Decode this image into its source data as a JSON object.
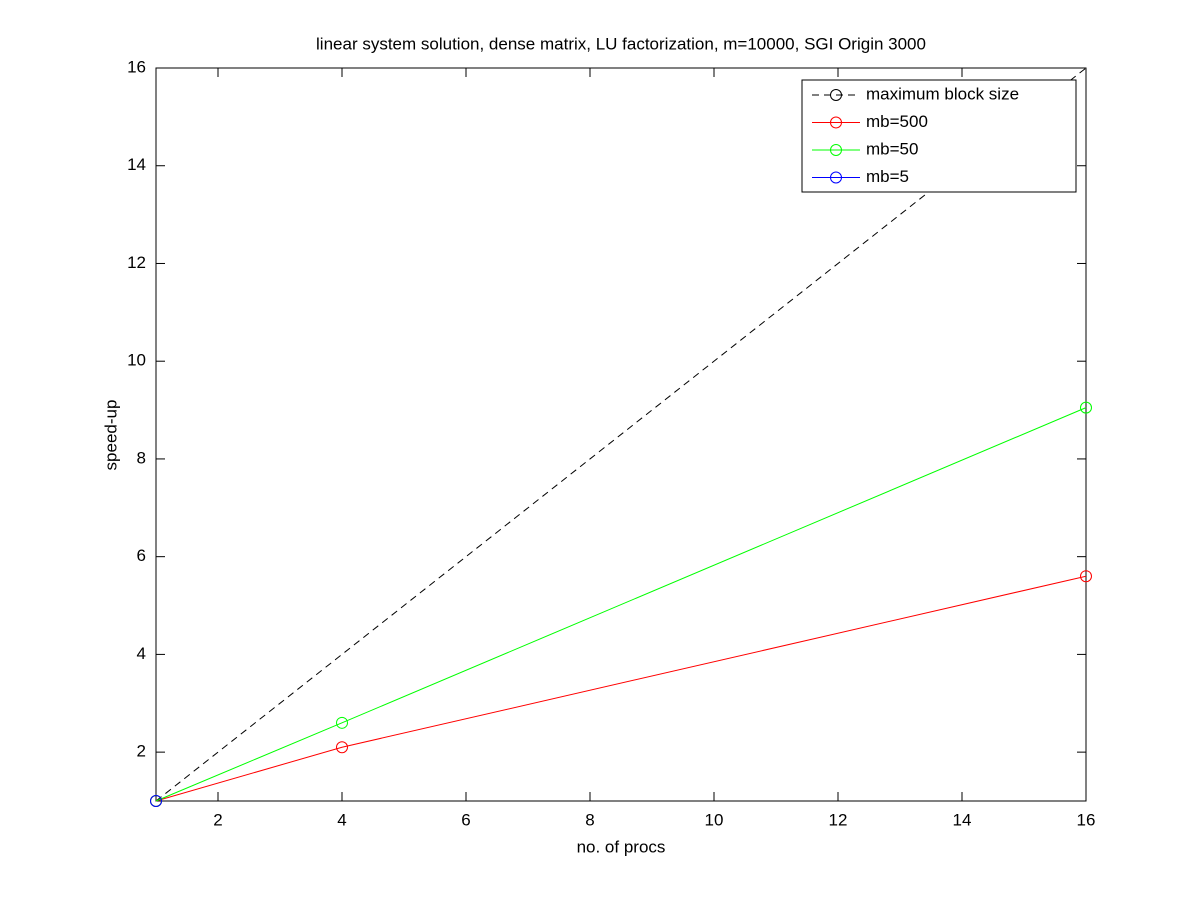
{
  "chart_data": {
    "type": "line",
    "title": "linear system solution, dense matrix, LU factorization, m=10000, SGI Origin 3000",
    "x_label": "no. of procs",
    "y_label": "speed-up",
    "xlim": [
      1,
      16
    ],
    "ylim": [
      1,
      16
    ],
    "xticks": [
      2,
      4,
      6,
      8,
      10,
      12,
      14,
      16
    ],
    "yticks": [
      2,
      4,
      6,
      8,
      10,
      12,
      14,
      16
    ],
    "legend": "northeast",
    "series": [
      {
        "name": "maximum block size",
        "color": "#000000",
        "dashed": true,
        "markers": false,
        "x": [
          1,
          16
        ],
        "values": [
          1,
          16
        ]
      },
      {
        "name": "mb=500",
        "color": "#ff0000",
        "dashed": false,
        "markers": true,
        "x": [
          1,
          4,
          16
        ],
        "values": [
          1,
          2.1,
          5.6
        ]
      },
      {
        "name": "mb=50",
        "color": "#00ff00",
        "dashed": false,
        "markers": true,
        "x": [
          1,
          4,
          16
        ],
        "values": [
          1,
          2.6,
          9.05
        ]
      },
      {
        "name": "mb=5",
        "color": "#0000ff",
        "dashed": false,
        "markers": true,
        "x": [
          1
        ],
        "values": [
          1
        ]
      }
    ]
  }
}
